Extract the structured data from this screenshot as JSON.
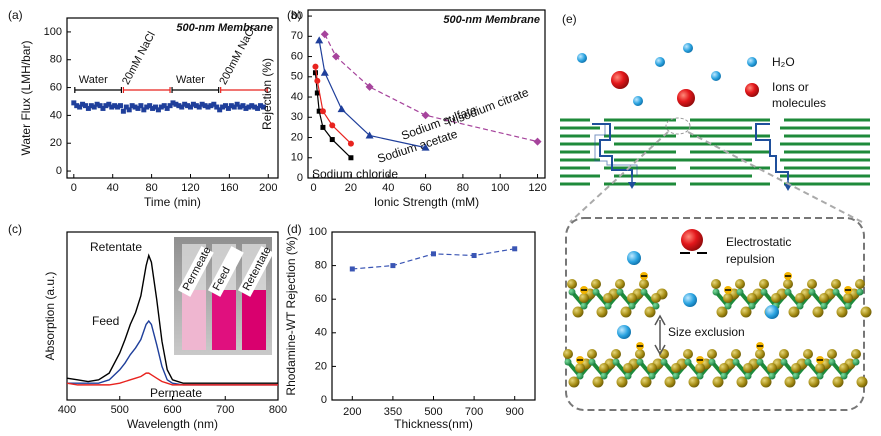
{
  "chart_data": [
    {
      "type": "scatter",
      "panel_label": "(a)",
      "annotation": "500-nm Membrane",
      "x_label": "Time (min)",
      "y_label": "Water Flux (LMH/bar)",
      "xlim": [
        -7,
        210
      ],
      "ylim": [
        -5,
        110
      ],
      "xticks": [
        0,
        40,
        80,
        120,
        160,
        200
      ],
      "yticks": [
        0,
        20,
        40,
        60,
        80,
        100
      ],
      "color": "#1f3f9b",
      "marker": "square",
      "phases": [
        {
          "label": "Water",
          "start": 0,
          "end": 50,
          "color": "#000000"
        },
        {
          "label": "20mM NaCl",
          "start": 50,
          "end": 100,
          "color": "#e8231f"
        },
        {
          "label": "Water",
          "start": 100,
          "end": 150,
          "color": "#000000"
        },
        {
          "label": "200mM NaCl",
          "start": 150,
          "end": 200,
          "color": "#e8231f"
        }
      ],
      "x": [
        0,
        3,
        6,
        9,
        12,
        15,
        18,
        21,
        24,
        27,
        30,
        33,
        36,
        39,
        42,
        45,
        48,
        51,
        54,
        57,
        60,
        63,
        66,
        69,
        72,
        75,
        78,
        81,
        84,
        87,
        90,
        93,
        96,
        99,
        102,
        105,
        108,
        111,
        114,
        117,
        120,
        123,
        126,
        129,
        132,
        135,
        138,
        141,
        144,
        147,
        150,
        153,
        156,
        159,
        162,
        165,
        168,
        171,
        174,
        177,
        180,
        183,
        186,
        189,
        192,
        195
      ],
      "values": [
        49,
        47,
        46,
        48,
        47,
        45,
        47,
        46,
        48,
        47,
        45,
        47,
        48,
        46,
        47,
        46,
        47,
        43,
        46,
        44,
        47,
        46,
        45,
        47,
        44,
        46,
        47,
        45,
        46,
        44,
        46,
        47,
        45,
        47,
        49,
        48,
        47,
        46,
        48,
        47,
        46,
        48,
        47,
        46,
        48,
        47,
        46,
        47,
        48,
        46,
        44,
        46,
        47,
        45,
        47,
        46,
        48,
        46,
        47,
        45,
        46,
        47,
        46,
        45,
        47,
        46
      ]
    },
    {
      "type": "line",
      "panel_label": "(b)",
      "annotation": "500-nm Membrane",
      "x_label": "Ionic Strength (mM)",
      "y_label": "Rejection (%)",
      "xlim": [
        -3,
        124
      ],
      "ylim": [
        0,
        83
      ],
      "xticks": [
        0,
        20,
        40,
        60,
        80,
        100,
        120
      ],
      "yticks": [
        0,
        10,
        20,
        30,
        40,
        50,
        60,
        70,
        80
      ],
      "series": [
        {
          "name": "Sodium chloride",
          "color": "#000000",
          "marker": "square",
          "line": "solid",
          "x": [
            1,
            2,
            3,
            5,
            10,
            20
          ],
          "values": [
            52,
            42,
            33,
            25,
            19,
            10
          ]
        },
        {
          "name": "Sodium acetate",
          "color": "#e8231f",
          "marker": "circle",
          "line": "solid",
          "x": [
            1,
            2,
            5,
            10,
            20
          ],
          "values": [
            55,
            48,
            33,
            26,
            17
          ]
        },
        {
          "name": "Sodium sulfate",
          "color": "#1f3f9b",
          "marker": "triangle",
          "line": "solid",
          "x": [
            3,
            6,
            15,
            30,
            60
          ],
          "values": [
            68,
            52,
            34,
            21,
            15
          ]
        },
        {
          "name": "Trisodium citrate",
          "color": "#a6449c",
          "marker": "diamond",
          "line": "dashed",
          "x": [
            6,
            12,
            30,
            60,
            120
          ],
          "values": [
            71,
            60,
            45,
            31,
            18
          ]
        }
      ]
    },
    {
      "type": "line",
      "panel_label": "(c)",
      "x_label": "Wavelength (nm)",
      "y_label": "Absorption (a.u.)",
      "xlim": [
        400,
        800
      ],
      "ylim": [
        0,
        1
      ],
      "xticks": [
        400,
        500,
        600,
        700,
        800
      ],
      "inset_labels": [
        "Permeate",
        "Feed",
        "Retentate"
      ],
      "x": [
        400,
        420,
        440,
        460,
        480,
        500,
        510,
        520,
        530,
        540,
        550,
        555,
        560,
        570,
        580,
        590,
        600,
        620,
        650,
        700,
        750,
        800
      ],
      "series": [
        {
          "name": "Retentate",
          "color": "#000000",
          "marker": "none",
          "line": "solid",
          "values": [
            0.13,
            0.12,
            0.11,
            0.12,
            0.16,
            0.28,
            0.36,
            0.45,
            0.52,
            0.62,
            0.8,
            0.86,
            0.82,
            0.6,
            0.35,
            0.18,
            0.12,
            0.1,
            0.1,
            0.1,
            0.1,
            0.1
          ]
        },
        {
          "name": "Feed",
          "color": "#1f3f9b",
          "marker": "none",
          "line": "solid",
          "values": [
            0.1,
            0.1,
            0.1,
            0.1,
            0.12,
            0.18,
            0.22,
            0.27,
            0.31,
            0.36,
            0.45,
            0.47,
            0.45,
            0.33,
            0.2,
            0.12,
            0.1,
            0.09,
            0.09,
            0.09,
            0.09,
            0.09
          ]
        },
        {
          "name": "Permeate",
          "color": "#e8231f",
          "marker": "none",
          "line": "solid",
          "values": [
            0.1,
            0.09,
            0.09,
            0.09,
            0.09,
            0.1,
            0.11,
            0.12,
            0.13,
            0.14,
            0.16,
            0.16,
            0.15,
            0.13,
            0.11,
            0.1,
            0.09,
            0.09,
            0.09,
            0.09,
            0.09,
            0.09
          ]
        }
      ]
    },
    {
      "type": "line",
      "panel_label": "(d)",
      "x_label": "Thickness(nm)",
      "y_label": "Rhodamine-WT Rejection (%)",
      "categories": [
        "200",
        "350",
        "500",
        "700",
        "900"
      ],
      "values": [
        78,
        80,
        87,
        86,
        90
      ],
      "ylim": [
        0,
        100
      ],
      "yticks": [
        0,
        20,
        40,
        60,
        80,
        100
      ],
      "color": "#3a55b4",
      "marker": "square",
      "line": "dashed"
    }
  ],
  "diagram": {
    "label": "(e)",
    "water": "H₂O",
    "ions": [
      "Ions or",
      "molecules"
    ],
    "repulsion": [
      "Electrostatic",
      "repulsion"
    ],
    "size_exclusion": "Size exclusion"
  }
}
